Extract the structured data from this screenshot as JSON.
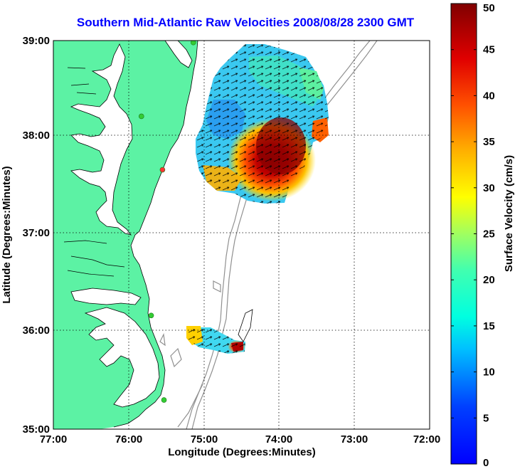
{
  "title": "Southern Mid-Atlantic Raw Velocities 2008/08/28 2300 GMT",
  "xlabel": "Longitude (Degrees:Minutes)",
  "ylabel": "Latitude (Degrees:Minutes)",
  "colorbar_label": "Surface Velocity (cm/s)",
  "x_ticks": [
    "77:00",
    "76:00",
    "75:00",
    "74:00",
    "73:00",
    "72:00"
  ],
  "y_ticks": [
    "39:00",
    "38:00",
    "37:00",
    "36:00",
    "35:00"
  ],
  "colorbar_ticks": [
    "0",
    "5",
    "10",
    "15",
    "20",
    "25",
    "30",
    "35",
    "40",
    "45",
    "50"
  ],
  "colors": {
    "land": "#5cf2a4",
    "title": "#0000ff",
    "bathymetry": "#909090"
  },
  "chart_data": {
    "type": "heatmap",
    "title": "Southern Mid-Atlantic Raw Velocities 2008/08/28 2300 GMT",
    "xlabel": "Longitude (Degrees:Minutes)",
    "ylabel": "Latitude (Degrees:Minutes)",
    "xlim": [
      -77,
      -72
    ],
    "ylim": [
      35,
      39
    ],
    "colorbar": {
      "label": "Surface Velocity (cm/s)",
      "range": [
        0,
        50
      ],
      "colormap": "jet"
    },
    "grid": true,
    "markers": [
      {
        "lon": -75.14,
        "lat": 38.98,
        "color": "#33cc33"
      },
      {
        "lon": -75.83,
        "lat": 38.22,
        "color": "#33cc33"
      },
      {
        "lon": -75.55,
        "lat": 37.67,
        "color": "#ff3333"
      },
      {
        "lon": -75.7,
        "lat": 36.17,
        "color": "#33cc33"
      },
      {
        "lon": -75.53,
        "lat": 35.3,
        "color": "#33cc33"
      }
    ]
  }
}
